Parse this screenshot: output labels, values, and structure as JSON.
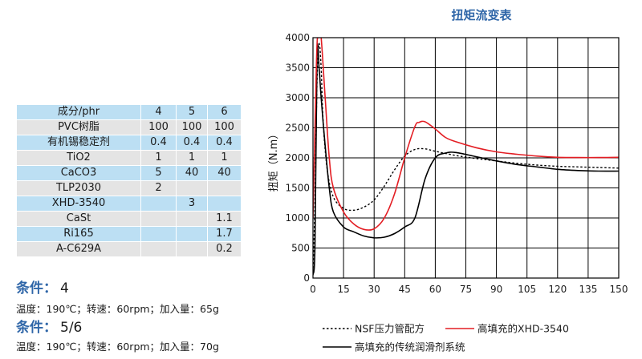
{
  "table": {
    "rows": [
      [
        "成分/phr",
        "4",
        "5",
        "6"
      ],
      [
        "PVC树脂",
        "100",
        "100",
        "100"
      ],
      [
        "有机锡稳定剂",
        "0.4",
        "0.4",
        "0.4"
      ],
      [
        "TiO2",
        "1",
        "1",
        "1"
      ],
      [
        "CaCO3",
        "5",
        "40",
        "40"
      ],
      [
        "TLP2030",
        "2",
        "",
        ""
      ],
      [
        "XHD-3540",
        "",
        "3",
        ""
      ],
      [
        "CaSt",
        "",
        "",
        "1.1"
      ],
      [
        "Ri165",
        "",
        "",
        "1.7"
      ],
      [
        "A-C629A",
        "",
        "",
        "0.2"
      ]
    ]
  },
  "conditions": [
    {
      "label": "条件：",
      "value": "4",
      "detail": "温度：190℃；转速：60rpm；加入量：65g"
    },
    {
      "label": "条件：",
      "value": "5/6",
      "detail": "温度：190℃；转速：60rpm；加入量：70g"
    }
  ],
  "chart_data": {
    "type": "line",
    "title": "扭矩流变表",
    "xlabel": "",
    "ylabel": "扭矩（N.m）",
    "xlim": [
      0,
      150
    ],
    "ylim": [
      0,
      4000
    ],
    "xticks": [
      "0",
      "15",
      "30",
      "45",
      "60",
      "75",
      "90",
      "105",
      "120",
      "135",
      "150"
    ],
    "yticks": [
      "0",
      "500",
      "1000",
      "1500",
      "2000",
      "2500",
      "3000",
      "3500",
      "4000"
    ],
    "grid": true,
    "legend_position": "bottom",
    "series": [
      {
        "name": "NSF压力管配方",
        "color": "#000000",
        "style": "dotted",
        "x": [
          0,
          1,
          2,
          3,
          4,
          5,
          7,
          10,
          15,
          20,
          25,
          30,
          35,
          40,
          45,
          50,
          55,
          60,
          70,
          80,
          90,
          100,
          110,
          120,
          130,
          140,
          150
        ],
        "y": [
          100,
          1300,
          3300,
          3900,
          3500,
          2600,
          1800,
          1350,
          1160,
          1130,
          1180,
          1300,
          1530,
          1800,
          2030,
          2140,
          2150,
          2110,
          2040,
          1990,
          1950,
          1910,
          1880,
          1860,
          1850,
          1840,
          1830
        ]
      },
      {
        "name": "高填充的XHD-3540",
        "color": "#e31e24",
        "style": "solid",
        "x": [
          0,
          1,
          2,
          3,
          4,
          6,
          8,
          10,
          15,
          20,
          25,
          30,
          35,
          40,
          45,
          50,
          52,
          55,
          60,
          65,
          70,
          80,
          90,
          100,
          110,
          120,
          130,
          140,
          150
        ],
        "y": [
          1000,
          2500,
          3900,
          4000,
          4000,
          3000,
          2000,
          1500,
          1100,
          900,
          810,
          820,
          1000,
          1400,
          2000,
          2520,
          2590,
          2600,
          2480,
          2340,
          2270,
          2170,
          2100,
          2060,
          2030,
          2010,
          2005,
          2005,
          2010
        ]
      },
      {
        "name": "高填充的传统润滑剂系统",
        "color": "#000000",
        "style": "solid",
        "x": [
          0,
          1,
          2,
          3,
          4,
          6,
          8,
          10,
          15,
          20,
          25,
          30,
          35,
          40,
          45,
          50,
          55,
          60,
          65,
          70,
          80,
          90,
          100,
          110,
          120,
          130,
          140,
          150
        ],
        "y": [
          50,
          550,
          3700,
          3500,
          3000,
          2200,
          1500,
          1100,
          850,
          770,
          700,
          670,
          680,
          740,
          850,
          1000,
          1650,
          2000,
          2080,
          2090,
          2020,
          1950,
          1890,
          1850,
          1810,
          1790,
          1780,
          1780
        ]
      }
    ]
  }
}
